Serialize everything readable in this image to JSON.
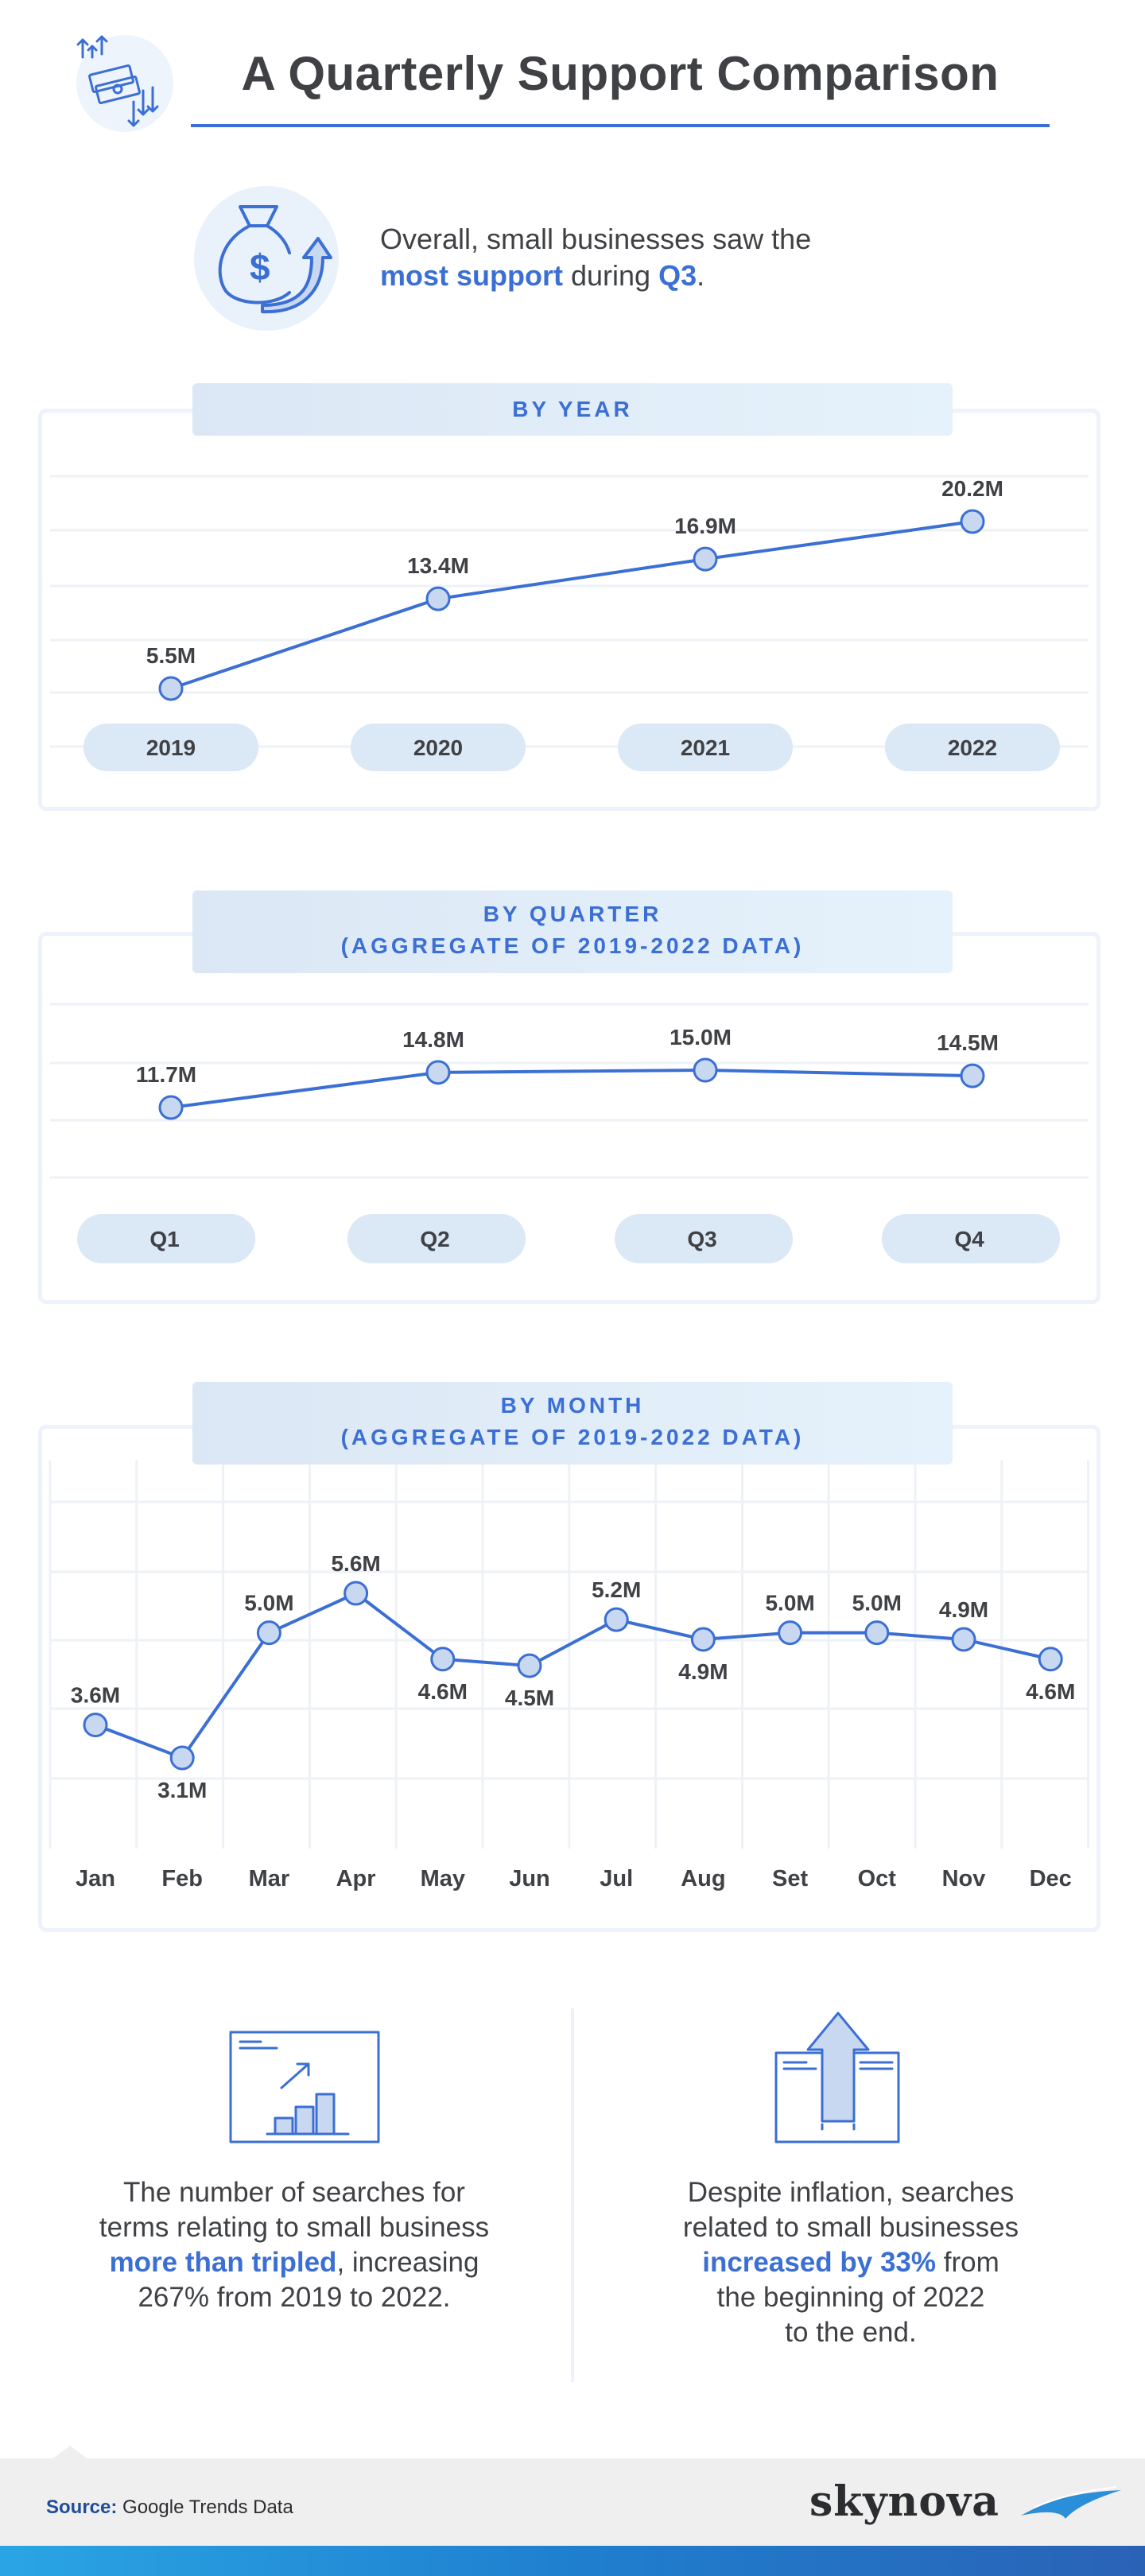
{
  "header": {
    "title": "A Quarterly Support Comparison",
    "icon": "money-exchange-icon"
  },
  "intro": {
    "icon": "money-bag-growth-icon",
    "line1": "Overall, small businesses saw the",
    "line2_bold": "most support",
    "line2_mid": " during ",
    "line2_bold2": "Q3",
    "line2_end": "."
  },
  "colors": {
    "accent": "#3b6fd4",
    "text": "#3f4145",
    "marker_fill": "#c9d8f1",
    "panel_border": "#edf2fb"
  },
  "chart_data": [
    {
      "type": "line",
      "title": "BY YEAR",
      "categories": [
        "2019",
        "2020",
        "2021",
        "2022"
      ],
      "values": [
        5.5,
        13.4,
        16.9,
        20.2
      ],
      "labels": [
        "5.5M",
        "13.4M",
        "16.9M",
        "20.2M"
      ],
      "unit": "M",
      "grid": true
    },
    {
      "type": "line",
      "title": "BY QUARTER",
      "subtitle": "(AGGREGATE OF 2019-2022 DATA)",
      "categories": [
        "Q1",
        "Q2",
        "Q3",
        "Q4"
      ],
      "values": [
        11.7,
        14.8,
        15.0,
        14.5
      ],
      "labels": [
        "11.7M",
        "14.8M",
        "15.0M",
        "14.5M"
      ],
      "unit": "M",
      "grid": true
    },
    {
      "type": "line",
      "title": "BY MONTH",
      "subtitle": "(AGGREGATE OF 2019-2022 DATA)",
      "categories": [
        "Jan",
        "Feb",
        "Mar",
        "Apr",
        "May",
        "Jun",
        "Jul",
        "Aug",
        "Set",
        "Oct",
        "Nov",
        "Dec"
      ],
      "values": [
        3.6,
        3.1,
        5.0,
        5.6,
        4.6,
        4.5,
        5.2,
        4.9,
        5.0,
        5.0,
        4.9,
        4.6
      ],
      "labels": [
        "3.6M",
        "3.1M",
        "5.0M",
        "5.6M",
        "4.6M",
        "4.5M",
        "5.2M",
        "4.9M",
        "5.0M",
        "5.0M",
        "4.9M",
        "4.6M"
      ],
      "unit": "M",
      "grid": true
    }
  ],
  "stats": [
    {
      "icon": "growth-chart-icon",
      "line1": "The number of searches for",
      "line2": "terms relating to small business",
      "line3_bold": "more than tripled",
      "line3_end": ", increasing",
      "line4": "267% from 2019 to 2022."
    },
    {
      "icon": "upward-arrow-window-icon",
      "line1": "Despite inflation, searches",
      "line2": "related to small businesses",
      "line3_bold": "increased by 33%",
      "line3_end": " from",
      "line4": "the beginning of 2022",
      "line5": "to the end."
    }
  ],
  "footer": {
    "source_label": "Source:",
    "source_text": " Google Trends Data",
    "brand": "skynova",
    "brand_icon": "wave-swoosh-icon"
  }
}
